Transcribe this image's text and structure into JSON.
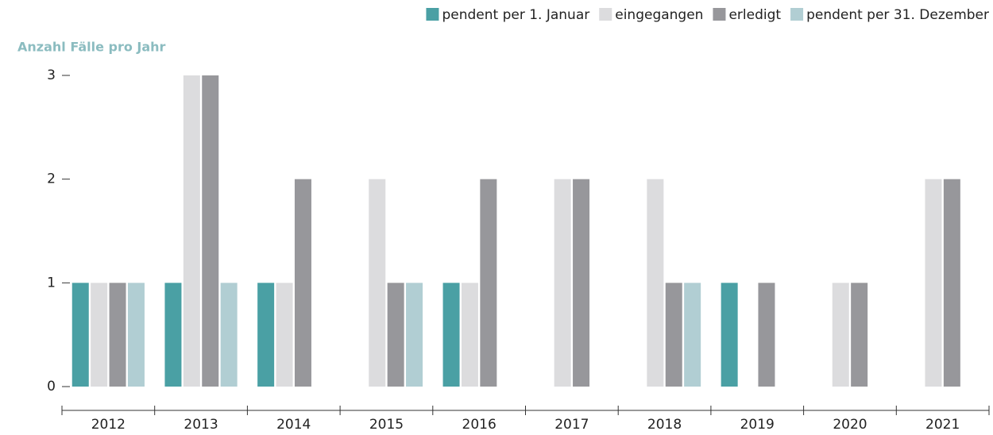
{
  "chart_data": {
    "type": "bar",
    "title": "Anzahl Fälle pro Jahr",
    "categories": [
      "2012",
      "2013",
      "2014",
      "2015",
      "2016",
      "2017",
      "2018",
      "2019",
      "2020",
      "2021"
    ],
    "series": [
      {
        "name": "pendent per 1. Januar",
        "color": "#4aa0a4",
        "values": [
          1,
          1,
          1,
          0,
          1,
          0,
          0,
          1,
          0,
          0
        ]
      },
      {
        "name": "eingegangen",
        "color": "#dcdcde",
        "values": [
          1,
          3,
          1,
          2,
          1,
          2,
          2,
          0,
          1,
          2
        ]
      },
      {
        "name": "erledigt",
        "color": "#97979b",
        "values": [
          1,
          3,
          2,
          1,
          2,
          2,
          1,
          1,
          1,
          2
        ]
      },
      {
        "name": "pendent per 31. Dezember",
        "color": "#b1ced3",
        "values": [
          1,
          1,
          0,
          1,
          0,
          0,
          1,
          0,
          0,
          0
        ]
      }
    ],
    "ylim": [
      0,
      3
    ],
    "yticks": [
      0,
      1,
      2,
      3
    ],
    "legend": "top-right"
  }
}
